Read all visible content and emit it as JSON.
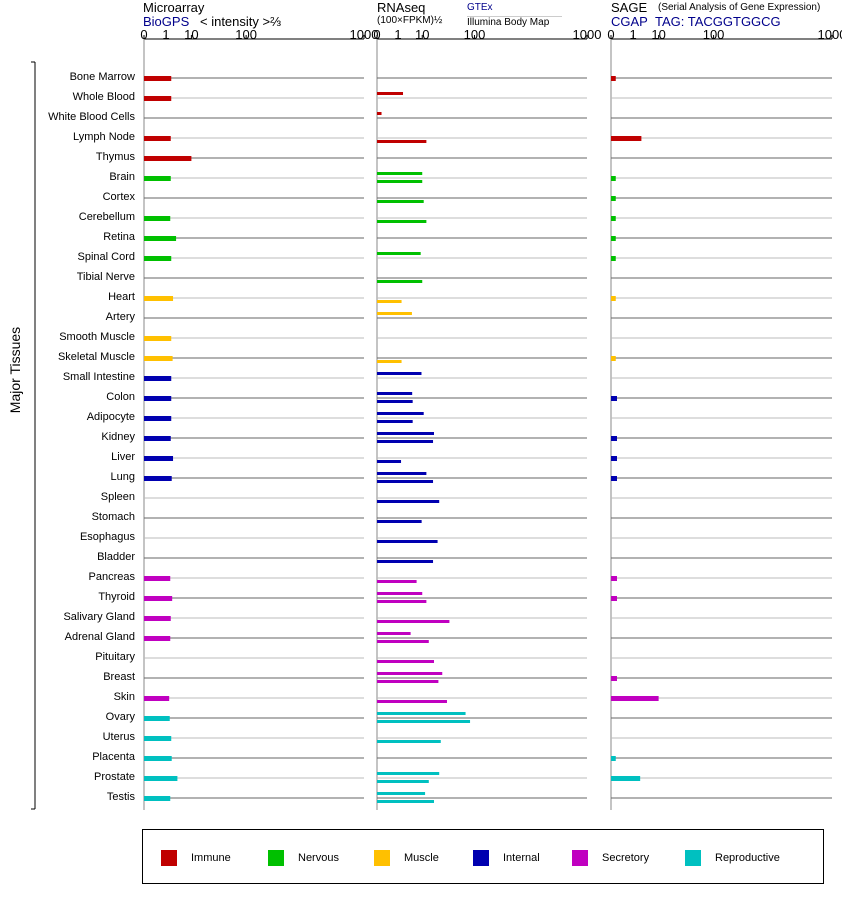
{
  "headers": {
    "microarray": {
      "title": "Microarray",
      "source": "BioGPS",
      "scale": "< intensity >⅔"
    },
    "rnaseq": {
      "title": "RNAseq",
      "scale": "(100×FPKM)½",
      "source1": "GTEx",
      "source2": "Illumina Body Map"
    },
    "sage": {
      "title": "SAGE",
      "subtitle": "(Serial Analysis of Gene Expression)",
      "source": "CGAP",
      "tag": "TAG: TACGGTGGCG"
    }
  },
  "axis_labels": [
    "0",
    "1",
    "10",
    "100",
    "1000"
  ],
  "group_label": "Major Tissues",
  "legend": [
    {
      "label": "Immune",
      "color": "#c00000"
    },
    {
      "label": "Nervous",
      "color": "#00c000"
    },
    {
      "label": "Muscle",
      "color": "#ffc000"
    },
    {
      "label": "Internal",
      "color": "#0000b0"
    },
    {
      "label": "Secretory",
      "color": "#c000c0"
    },
    {
      "label": "Reproductive",
      "color": "#00c0c0"
    }
  ],
  "chart_data": {
    "type": "bar",
    "x_scale": "power",
    "xlim": [
      0,
      1000
    ],
    "categories": [
      "Bone Marrow",
      "Whole Blood",
      "White Blood Cells",
      "Lymph Node",
      "Thymus",
      "Brain",
      "Cortex",
      "Cerebellum",
      "Retina",
      "Spinal Cord",
      "Tibial Nerve",
      "Heart",
      "Artery",
      "Smooth Muscle",
      "Skeletal Muscle",
      "Small Intestine",
      "Colon",
      "Adipocyte",
      "Kidney",
      "Liver",
      "Lung",
      "Spleen",
      "Stomach",
      "Esophagus",
      "Bladder",
      "Pancreas",
      "Thyroid",
      "Salivary Gland",
      "Adrenal Gland",
      "Pituitary",
      "Breast",
      "Skin",
      "Ovary",
      "Uterus",
      "Placenta",
      "Prostate",
      "Testis"
    ],
    "category_group": [
      "Immune",
      "Immune",
      "Immune",
      "Immune",
      "Immune",
      "Nervous",
      "Nervous",
      "Nervous",
      "Nervous",
      "Nervous",
      "Nervous",
      "Muscle",
      "Muscle",
      "Muscle",
      "Muscle",
      "Internal",
      "Internal",
      "Internal",
      "Internal",
      "Internal",
      "Internal",
      "Internal",
      "Internal",
      "Internal",
      "Internal",
      "Secretory",
      "Secretory",
      "Secretory",
      "Secretory",
      "Secretory",
      "Secretory",
      "Secretory",
      "Reproductive",
      "Reproductive",
      "Reproductive",
      "Reproductive",
      "Reproductive"
    ],
    "series": [
      {
        "name": "Microarray",
        "values": [
          1.9,
          1.9,
          null,
          1.8,
          10,
          1.8,
          null,
          1.7,
          3.1,
          1.9,
          null,
          2.3,
          null,
          1.9,
          2.2,
          1.9,
          1.9,
          1.9,
          1.8,
          2.3,
          2.0,
          null,
          null,
          null,
          null,
          1.7,
          2.1,
          1.8,
          1.7,
          null,
          null,
          1.5,
          1.6,
          1.9,
          2.0,
          3.5,
          1.7
        ]
      },
      {
        "name": "GTEx",
        "values": [
          null,
          1.9,
          0.01,
          null,
          null,
          10,
          null,
          null,
          null,
          9,
          null,
          null,
          4.6,
          null,
          null,
          9.5,
          4.7,
          11,
          20,
          null,
          13,
          null,
          null,
          null,
          null,
          null,
          10,
          null,
          4.1,
          null,
          30,
          null,
          75,
          null,
          null,
          26,
          12
        ]
      },
      {
        "name": "Illumina Body Map",
        "values": [
          null,
          null,
          null,
          13,
          null,
          10,
          11,
          13,
          null,
          null,
          10,
          1.6,
          null,
          null,
          1.6,
          null,
          4.9,
          4.9,
          19,
          1.5,
          19,
          26,
          9.6,
          24,
          19,
          6.7,
          13,
          41,
          15,
          20,
          25,
          37,
          87,
          28,
          null,
          15,
          20
        ]
      },
      {
        "name": "SAGE",
        "values": [
          0.01,
          null,
          null,
          2.6,
          null,
          0.01,
          0.01,
          0.01,
          0.01,
          0.01,
          null,
          0.01,
          null,
          null,
          0.01,
          null,
          0.02,
          null,
          0.02,
          0.02,
          0.02,
          null,
          null,
          null,
          null,
          0.02,
          0.02,
          null,
          null,
          null,
          0.02,
          10,
          null,
          null,
          0.01,
          2.3,
          null
        ]
      }
    ]
  }
}
